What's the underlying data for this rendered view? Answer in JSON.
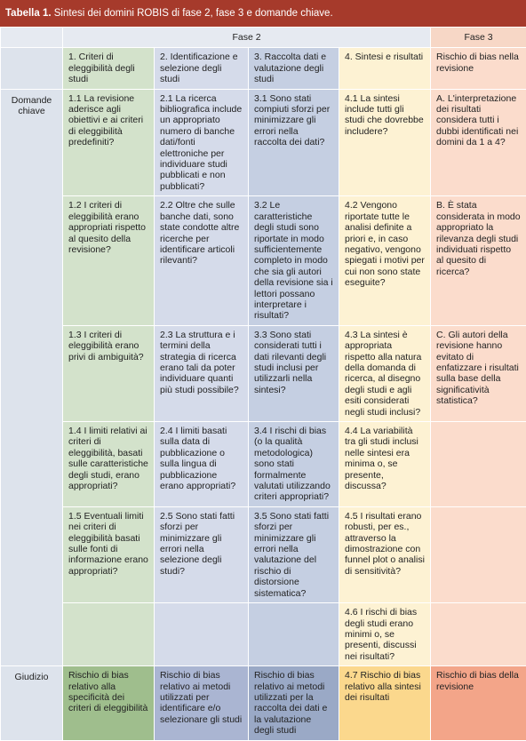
{
  "title": {
    "label": "Tabella 1.",
    "text": "Sintesi dei domini ROBIS di fase 2, fase 3 e domande chiave."
  },
  "phases": [
    "Fase 2",
    "Fase 3"
  ],
  "columns": [
    "1. Criteri di eleggibilità degli studi",
    "2. Identificazione e selezione degli studi",
    "3. Raccolta dati e valutazione degli studi",
    "4. Sintesi e risultati",
    "Rischio di bias nella revisione"
  ],
  "row_labels": [
    "Domande chiave",
    "Giudizio"
  ],
  "questions": [
    [
      "1.1 La revisione aderisce agli obiettivi e ai criteri di eleggibilità predefiniti?",
      "2.1 La ricerca bibliografica include un appropriato numero di banche dati/fonti elettroniche per individuare studi pubblicati e non pubblicati?",
      "3.1 Sono stati compiuti sforzi per minimizzare gli errori nella raccolta dei dati?",
      "4.1 La sintesi include tutti gli studi che dovrebbe includere?",
      "A. L'interpretazione dei risultati considera tutti i dubbi identificati nei domini da 1 a 4?"
    ],
    [
      "1.2 I criteri di eleggibilità erano appropriati rispetto al quesito della revisione?",
      "2.2 Oltre che sulle banche dati, sono state condotte altre ricerche per identificare articoli rilevanti?",
      "3.2 Le caratteristiche degli studi sono riportate in modo sufficientemente completo in modo che sia gli autori della revisione sia i lettori possano interpretare i risultati?",
      "4.2 Vengono riportate tutte le analisi definite a priori e, in caso negativo, vengono spiegati i motivi per cui non sono state eseguite?",
      "B. È stata considerata in modo appropriato la rilevanza degli studi individuati rispetto al quesito di ricerca?"
    ],
    [
      "1.3 I criteri di eleggibilità erano privi di ambiguità?",
      "2.3 La struttura e i termini della strategia di ricerca erano tali da poter individuare quanti più studi possibile?",
      "3.3 Sono stati considerati tutti i dati rilevanti degli studi inclusi per utilizzarli nella sintesi?",
      "4.3 La sintesi è appropriata rispetto alla natura della domanda di ricerca, al disegno degli studi e agli esiti considerati negli studi inclusi?",
      "C. Gli autori della revisione hanno evitato di enfatizzare i risultati sulla base della significatività statistica?"
    ],
    [
      "1.4 I limiti relativi ai criteri di eleggibilità, basati sulle caratteristiche degli studi, erano appropriati?",
      "2.4 I limiti basati sulla data di pubblicazione o sulla lingua di pubblicazione erano appropriati?",
      "3.4 I rischi di bias (o la qualità metodologica) sono stati formalmente valutati utilizzando criteri appropriati?",
      "4.4 La variabilità tra gli studi inclusi nelle sintesi era minima o, se presente, discussa?",
      null
    ],
    [
      "1.5 Eventuali limiti nei criteri di eleggibilità basati sulle fonti di informazione erano appropriati?",
      "2.5 Sono stati fatti sforzi per minimizzare gli errori nella selezione degli studi?",
      "3.5 Sono stati fatti sforzi per minimizzare gli errori nella valutazione del rischio di distorsione sistematica?",
      "4.5 I risultati erano robusti, per es., attraverso la dimostrazione con funnel plot o analisi di sensitività?",
      null
    ],
    [
      null,
      null,
      null,
      "4.6 I rischi di bias degli studi erano minimi o, se presenti, discussi nei risultati?",
      null
    ]
  ],
  "judgments": [
    "Rischio di bias relativo alla specificità dei criteri di eleggibilità",
    "Rischio di bias relativo ai metodi utilizzati per identificare e/o selezionare gli studi",
    "Rischio di bias relativo ai metodi utilizzati per la raccolta dei dati e la valutazione degli studi",
    "4.7 Rischio di bias relativo alla sintesi dei risultati",
    "Rischio di bias della revisione"
  ]
}
